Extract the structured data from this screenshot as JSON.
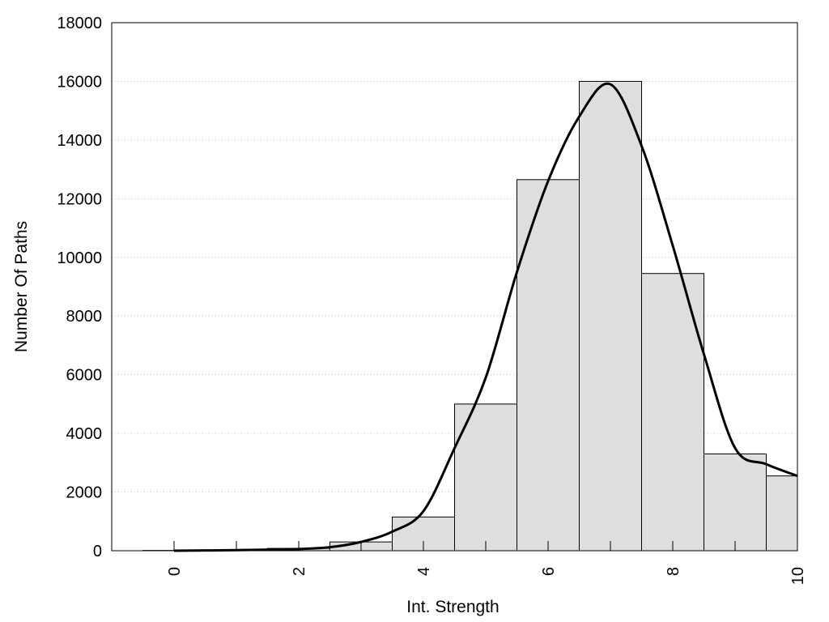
{
  "chart_data": {
    "type": "bar",
    "xlabel": "Int. Strength",
    "ylabel": "Number Of Paths",
    "xlim": [
      -1,
      10
    ],
    "ylim": [
      0,
      18000
    ],
    "x_ticks": [
      "0",
      "2",
      "4",
      "6",
      "8",
      "10"
    ],
    "y_ticks": [
      "0",
      "2000",
      "4000",
      "6000",
      "8000",
      "10000",
      "12000",
      "14000",
      "16000",
      "18000"
    ],
    "grid": "horizontal dotted",
    "legend": "none",
    "bar_fill": "#dedede",
    "line_color": "#000000",
    "bars": {
      "bin_width": 1,
      "centers": [
        0,
        1,
        2,
        3,
        4,
        5,
        6,
        7,
        8,
        9,
        10
      ],
      "values": [
        10,
        30,
        80,
        300,
        1150,
        5000,
        12650,
        16000,
        9450,
        3300,
        2550
      ]
    },
    "curve": {
      "x": [
        0,
        1,
        2,
        2.5,
        3,
        3.5,
        4,
        4.5,
        5,
        5.5,
        6,
        6.5,
        7,
        7.5,
        8,
        8.5,
        9,
        9.5,
        10
      ],
      "y": [
        0,
        20,
        60,
        120,
        300,
        650,
        1350,
        3500,
        5900,
        9500,
        12600,
        14800,
        15900,
        13800,
        10400,
        6700,
        3500,
        2950,
        2550
      ]
    }
  }
}
